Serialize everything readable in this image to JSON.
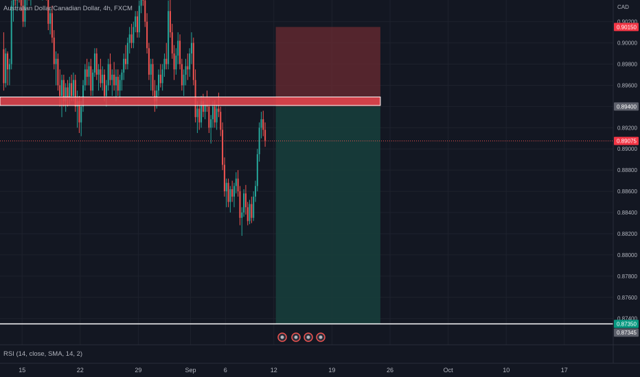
{
  "header": {
    "symbol_title": "Australian Dollar/Canadian Dollar, 4h, FXCM",
    "currency": "CAD"
  },
  "indicator": {
    "label": "RSI (14, close, SMA, 14, 2)"
  },
  "colors": {
    "background": "#131722",
    "up": "#26a69a",
    "down": "#ef5350",
    "grid": "#1e222d",
    "axis_text": "#b2b5be",
    "resistance_zone": "#e8474f",
    "stop_zone": "#6b2b31",
    "target_zone": "#173d3b"
  },
  "chart_data": {
    "type": "candlestick",
    "price_axis": {
      "min": 0.8734,
      "max": 0.9023,
      "ticks": [
        "0.90200",
        "0.90000",
        "0.89800",
        "0.89600",
        "0.89400",
        "0.89200",
        "0.89000",
        "0.88800",
        "0.88600",
        "0.88400",
        "0.88200",
        "0.88000",
        "0.87800",
        "0.87600",
        "0.87400"
      ]
    },
    "time_axis": {
      "ticks": [
        {
          "label": "15",
          "bar": 10
        },
        {
          "label": "22",
          "bar": 40
        },
        {
          "label": "29",
          "bar": 70
        },
        {
          "label": "Sep",
          "bar": 97
        },
        {
          "label": "6",
          "bar": 115
        },
        {
          "label": "12",
          "bar": 140
        },
        {
          "label": "19",
          "bar": 170
        },
        {
          "label": "26",
          "bar": 200
        },
        {
          "label": "Oct",
          "bar": 230
        },
        {
          "label": "10",
          "bar": 260
        },
        {
          "label": "17",
          "bar": 290
        }
      ]
    },
    "price_labels": {
      "stop": "0.90150",
      "entry": "0.89400",
      "current": "0.89075",
      "target": "0.87350",
      "target2": "0.87345"
    },
    "resistance_zone": {
      "top": 0.8949,
      "bottom": 0.8941
    },
    "position": {
      "side": "short",
      "entry": 0.894,
      "stop": 0.9015,
      "target": 0.8735,
      "start_bar": 141,
      "end_bar": 195
    },
    "candles": [
      [
        0.8994,
        0.901,
        0.8955,
        0.8962
      ],
      [
        0.8962,
        0.8995,
        0.8958,
        0.899
      ],
      [
        0.899,
        0.8992,
        0.896,
        0.8975
      ],
      [
        0.8975,
        0.8985,
        0.896,
        0.898
      ],
      [
        0.898,
        0.904,
        0.8975,
        0.9035
      ],
      [
        0.9035,
        0.906,
        0.902,
        0.905
      ],
      [
        0.905,
        0.9065,
        0.9035,
        0.904
      ],
      [
        0.904,
        0.9055,
        0.903,
        0.9048
      ],
      [
        0.9048,
        0.906,
        0.9038,
        0.9045
      ],
      [
        0.9045,
        0.9055,
        0.903,
        0.9035
      ],
      [
        0.9035,
        0.9045,
        0.9015,
        0.902
      ],
      [
        0.902,
        0.9048,
        0.9015,
        0.9042
      ],
      [
        0.9042,
        0.906,
        0.9035,
        0.9055
      ],
      [
        0.9055,
        0.9065,
        0.904,
        0.9045
      ],
      [
        0.9045,
        0.9058,
        0.9035,
        0.905
      ],
      [
        0.905,
        0.907,
        0.9045,
        0.906
      ],
      [
        0.906,
        0.9075,
        0.905,
        0.9055
      ],
      [
        0.9055,
        0.907,
        0.9045,
        0.9065
      ],
      [
        0.9065,
        0.908,
        0.9055,
        0.907
      ],
      [
        0.907,
        0.9075,
        0.9045,
        0.905
      ],
      [
        0.905,
        0.9065,
        0.904,
        0.9058
      ],
      [
        0.9058,
        0.9072,
        0.905,
        0.9062
      ],
      [
        0.9062,
        0.9068,
        0.904,
        0.9045
      ],
      [
        0.9045,
        0.905,
        0.9012,
        0.9018
      ],
      [
        0.9018,
        0.9032,
        0.9008,
        0.9028
      ],
      [
        0.9028,
        0.9035,
        0.9,
        0.9005
      ],
      [
        0.9005,
        0.9012,
        0.8975,
        0.898
      ],
      [
        0.898,
        0.8992,
        0.896,
        0.8985
      ],
      [
        0.8985,
        0.899,
        0.8955,
        0.896
      ],
      [
        0.896,
        0.8975,
        0.894,
        0.895
      ],
      [
        0.895,
        0.897,
        0.893,
        0.8965
      ],
      [
        0.8965,
        0.897,
        0.894,
        0.8945
      ],
      [
        0.8945,
        0.8962,
        0.8935,
        0.8958
      ],
      [
        0.8958,
        0.8965,
        0.894,
        0.8948
      ],
      [
        0.8948,
        0.8968,
        0.8942,
        0.8962
      ],
      [
        0.8962,
        0.897,
        0.8945,
        0.895
      ],
      [
        0.895,
        0.8972,
        0.8945,
        0.8965
      ],
      [
        0.8965,
        0.897,
        0.8935,
        0.894
      ],
      [
        0.894,
        0.8955,
        0.892,
        0.8945
      ],
      [
        0.8945,
        0.895,
        0.8915,
        0.8925
      ],
      [
        0.8925,
        0.8945,
        0.8912,
        0.894
      ],
      [
        0.894,
        0.8965,
        0.8935,
        0.896
      ],
      [
        0.896,
        0.898,
        0.8955,
        0.8975
      ],
      [
        0.8975,
        0.8985,
        0.896,
        0.8968
      ],
      [
        0.8968,
        0.8982,
        0.896,
        0.8978
      ],
      [
        0.8978,
        0.8985,
        0.895,
        0.8955
      ],
      [
        0.8955,
        0.8975,
        0.895,
        0.8972
      ],
      [
        0.8972,
        0.8995,
        0.8968,
        0.899
      ],
      [
        0.899,
        0.8995,
        0.8965,
        0.897
      ],
      [
        0.897,
        0.898,
        0.8955,
        0.8975
      ],
      [
        0.8975,
        0.8985,
        0.8958,
        0.8962
      ],
      [
        0.8962,
        0.8978,
        0.8955,
        0.897
      ],
      [
        0.897,
        0.8975,
        0.8945,
        0.895
      ],
      [
        0.895,
        0.8965,
        0.894,
        0.896
      ],
      [
        0.896,
        0.8985,
        0.8955,
        0.898
      ],
      [
        0.898,
        0.899,
        0.896,
        0.8965
      ],
      [
        0.8965,
        0.8975,
        0.895,
        0.897
      ],
      [
        0.897,
        0.8982,
        0.8955,
        0.896
      ],
      [
        0.896,
        0.8975,
        0.8945,
        0.8968
      ],
      [
        0.8968,
        0.8975,
        0.895,
        0.8955
      ],
      [
        0.8955,
        0.897,
        0.8948,
        0.8965
      ],
      [
        0.8965,
        0.8975,
        0.8955,
        0.8972
      ],
      [
        0.8972,
        0.899,
        0.8965,
        0.8985
      ],
      [
        0.8985,
        0.8998,
        0.8975,
        0.898
      ],
      [
        0.898,
        0.9005,
        0.8975,
        0.9
      ],
      [
        0.9,
        0.9015,
        0.899,
        0.9008
      ],
      [
        0.9008,
        0.9018,
        0.8995,
        0.9
      ],
      [
        0.9,
        0.902,
        0.8995,
        0.9015
      ],
      [
        0.9015,
        0.903,
        0.901,
        0.9025
      ],
      [
        0.9025,
        0.903,
        0.9005,
        0.901
      ],
      [
        0.901,
        0.904,
        0.9005,
        0.9035
      ],
      [
        0.9035,
        0.9055,
        0.9028,
        0.905
      ],
      [
        0.905,
        0.906,
        0.9035,
        0.904
      ],
      [
        0.904,
        0.9045,
        0.9015,
        0.902
      ],
      [
        0.902,
        0.9028,
        0.899,
        0.8995
      ],
      [
        0.8995,
        0.9,
        0.8965,
        0.897
      ],
      [
        0.897,
        0.8985,
        0.8955,
        0.898
      ],
      [
        0.898,
        0.8985,
        0.895,
        0.8955
      ],
      [
        0.8955,
        0.8965,
        0.8935,
        0.8945
      ],
      [
        0.8945,
        0.896,
        0.8938,
        0.8955
      ],
      [
        0.8955,
        0.8975,
        0.895,
        0.897
      ],
      [
        0.897,
        0.898,
        0.8958,
        0.8962
      ],
      [
        0.8962,
        0.898,
        0.8955,
        0.8975
      ],
      [
        0.8975,
        0.899,
        0.8968,
        0.8985
      ],
      [
        0.8985,
        0.9,
        0.8975,
        0.898
      ],
      [
        0.898,
        0.904,
        0.8975,
        0.903
      ],
      [
        0.903,
        0.9045,
        0.9005,
        0.901
      ],
      [
        0.901,
        0.9018,
        0.8985,
        0.899
      ],
      [
        0.899,
        0.8998,
        0.8965,
        0.8975
      ],
      [
        0.8975,
        0.8995,
        0.897,
        0.8988
      ],
      [
        0.8988,
        0.901,
        0.898,
        0.9002
      ],
      [
        0.9002,
        0.9008,
        0.8975,
        0.898
      ],
      [
        0.898,
        0.8985,
        0.8955,
        0.896
      ],
      [
        0.896,
        0.8975,
        0.895,
        0.897
      ],
      [
        0.897,
        0.8985,
        0.896,
        0.8978
      ],
      [
        0.8978,
        0.899,
        0.8965,
        0.8975
      ],
      [
        0.8975,
        0.8995,
        0.8968,
        0.899
      ],
      [
        0.899,
        0.901,
        0.898,
        0.9
      ],
      [
        0.9,
        0.9005,
        0.896,
        0.8965
      ],
      [
        0.8965,
        0.8975,
        0.8925,
        0.893
      ],
      [
        0.893,
        0.8945,
        0.8915,
        0.8938
      ],
      [
        0.8938,
        0.8942,
        0.8918,
        0.8925
      ],
      [
        0.8925,
        0.895,
        0.892,
        0.8945
      ],
      [
        0.8945,
        0.8952,
        0.893,
        0.8935
      ],
      [
        0.8935,
        0.8948,
        0.8928,
        0.8942
      ],
      [
        0.8942,
        0.8955,
        0.8935,
        0.894
      ],
      [
        0.894,
        0.8948,
        0.8915,
        0.892
      ],
      [
        0.892,
        0.8932,
        0.8905,
        0.8928
      ],
      [
        0.8928,
        0.8945,
        0.892,
        0.894
      ],
      [
        0.894,
        0.8946,
        0.892,
        0.8925
      ],
      [
        0.8925,
        0.8942,
        0.8918,
        0.8938
      ],
      [
        0.8938,
        0.8953,
        0.893,
        0.8935
      ],
      [
        0.8935,
        0.894,
        0.8912,
        0.8918
      ],
      [
        0.8918,
        0.8925,
        0.888,
        0.8885
      ],
      [
        0.8885,
        0.8892,
        0.8855,
        0.886
      ],
      [
        0.886,
        0.8872,
        0.8845,
        0.8868
      ],
      [
        0.8868,
        0.8872,
        0.8845,
        0.885
      ],
      [
        0.885,
        0.8865,
        0.884,
        0.8862
      ],
      [
        0.8862,
        0.887,
        0.885,
        0.8855
      ],
      [
        0.8855,
        0.8868,
        0.8845,
        0.8865
      ],
      [
        0.8865,
        0.8878,
        0.8858,
        0.8872
      ],
      [
        0.8872,
        0.888,
        0.8855,
        0.886
      ],
      [
        0.886,
        0.8865,
        0.8828,
        0.8835
      ],
      [
        0.8835,
        0.8845,
        0.8818,
        0.884
      ],
      [
        0.884,
        0.8862,
        0.8836,
        0.8858
      ],
      [
        0.8858,
        0.8866,
        0.8838,
        0.8845
      ],
      [
        0.8845,
        0.885,
        0.8828,
        0.8832
      ],
      [
        0.8832,
        0.8852,
        0.8829,
        0.8848
      ],
      [
        0.8848,
        0.8855,
        0.883,
        0.8835
      ],
      [
        0.8835,
        0.886,
        0.8832,
        0.8855
      ],
      [
        0.8855,
        0.887,
        0.885,
        0.8865
      ],
      [
        0.8865,
        0.89,
        0.886,
        0.8895
      ],
      [
        0.8895,
        0.8925,
        0.8888,
        0.892
      ],
      [
        0.892,
        0.8935,
        0.891,
        0.8928
      ],
      [
        0.8928,
        0.8936,
        0.8912,
        0.8918
      ],
      [
        0.8918,
        0.8925,
        0.8902,
        0.8908
      ]
    ]
  }
}
